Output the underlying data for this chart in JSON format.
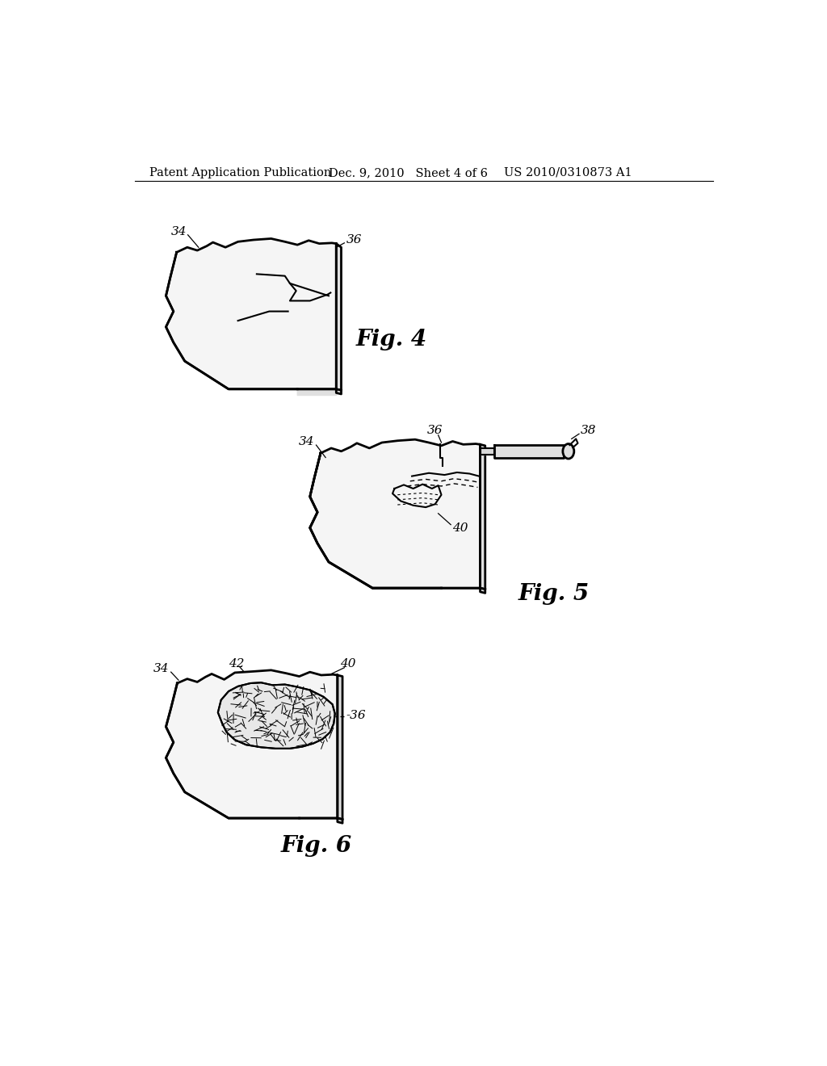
{
  "background_color": "#ffffff",
  "header_left": "Patent Application Publication",
  "header_center": "Dec. 9, 2010   Sheet 4 of 6",
  "header_right": "US 2010/0310873 A1",
  "header_fontsize": 10.5,
  "fig4_label": "Fig. 4",
  "fig5_label": "Fig. 5",
  "fig6_label": "Fig. 6",
  "label_fontsize": 20,
  "annot_fontsize": 11,
  "line_color": "#000000",
  "fill_color": "#ffffff"
}
